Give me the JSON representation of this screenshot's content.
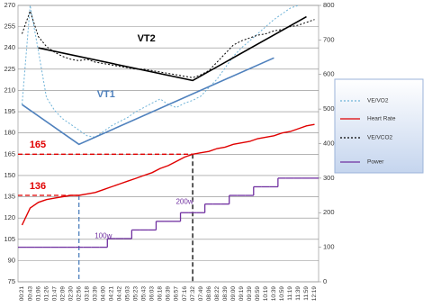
{
  "chart_data": {
    "type": "line",
    "categories": [
      "00:21",
      "00:43",
      "01:06",
      "01:26",
      "01:47",
      "02:09",
      "02:30",
      "02:56",
      "03:18",
      "03:39",
      "04:00",
      "04:21",
      "04:42",
      "05:03",
      "05:23",
      "05:43",
      "06:03",
      "06:18",
      "06:39",
      "06:57",
      "07:16",
      "07:32",
      "07:49",
      "08:06",
      "08:22",
      "08:39",
      "09:00",
      "09:19",
      "09:39",
      "09:59",
      "10:19",
      "10:39",
      "10:59",
      "11:19",
      "11:39",
      "11:59",
      "12:19"
    ],
    "series": [
      {
        "name": "VE/VO2",
        "color": "#6fb3d8",
        "dash": "2,2",
        "values": [
          200,
          270,
          238,
          205,
          196,
          190,
          186,
          182,
          178,
          177,
          181,
          185,
          188,
          191,
          195,
          198,
          201,
          204,
          200,
          198,
          201,
          203,
          206,
          212,
          218,
          226,
          234,
          240,
          245,
          250,
          255,
          260,
          264,
          268,
          270,
          null,
          null
        ]
      },
      {
        "name": "Heart Rate",
        "color": "#e00000",
        "values": [
          115,
          127,
          131,
          133,
          134,
          135,
          136,
          136,
          137,
          138,
          140,
          142,
          144,
          146,
          148,
          150,
          152,
          155,
          157,
          160,
          163,
          165,
          166,
          167,
          169,
          170,
          172,
          173,
          174,
          176,
          177,
          178,
          180,
          181,
          183,
          185,
          186
        ]
      },
      {
        "name": "VE/VCO2",
        "color": "#000000",
        "dash": "2,2",
        "values": [
          250,
          266,
          248,
          241,
          237,
          234,
          232,
          231,
          232,
          230,
          229,
          228,
          227,
          226,
          225,
          225,
          224,
          223,
          222,
          221,
          220,
          219,
          221,
          224,
          230,
          236,
          242,
          245,
          247,
          249,
          250,
          252,
          253,
          255,
          256,
          258,
          260
        ]
      },
      {
        "name": "Power",
        "color": "#7030a0",
        "axis": "y2",
        "step": true,
        "values": [
          100,
          100,
          100,
          100,
          100,
          100,
          100,
          100,
          100,
          100,
          100,
          125,
          125,
          125,
          150,
          150,
          150,
          175,
          175,
          175,
          200,
          200,
          200,
          225,
          225,
          225,
          250,
          250,
          250,
          275,
          275,
          275,
          300,
          300,
          300,
          300,
          300
        ]
      }
    ],
    "trend_lines": [
      {
        "name": "VT1",
        "color": "#4f81bd",
        "x": [
          "00:21",
          "02:56",
          "10:39"
        ],
        "values": [
          200,
          172,
          233
        ]
      },
      {
        "name": "VT2",
        "color": "#000000",
        "x": [
          "01:06",
          "07:32",
          "11:59"
        ],
        "values": [
          240,
          217,
          262
        ]
      }
    ],
    "thresholds": [
      {
        "value": 136,
        "x": "02:56",
        "color": "#e00000",
        "vcolor": "#4f81bd"
      },
      {
        "value": 165,
        "x": "07:32",
        "color": "#e00000",
        "vcolor": "#000000"
      }
    ],
    "annotations": [
      {
        "text": "100w",
        "x": "04:00",
        "value": 100,
        "color": "#7030a0"
      },
      {
        "text": "200w",
        "x": "07:16",
        "value": 200,
        "color": "#7030a0"
      }
    ],
    "ylim": [
      75,
      270
    ],
    "yticks": [
      75,
      90,
      105,
      120,
      135,
      150,
      165,
      180,
      195,
      210,
      225,
      240,
      255,
      270
    ],
    "y2lim": [
      0,
      800
    ],
    "y2ticks": [
      0,
      100,
      200,
      300,
      400,
      500,
      600,
      700,
      800
    ],
    "grid": true
  }
}
